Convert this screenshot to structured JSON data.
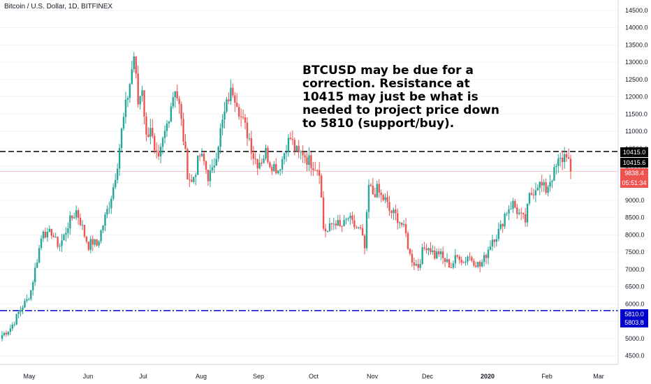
{
  "header": {
    "title": "Bitcoin / U.S. Dollar, 1D, BITFINEX"
  },
  "annotation": "BTCUSD may be due for a correction. Resistance at 10415 may just be what is needed to project price down to 5810 (support/buy).",
  "price_tags": {
    "resistance": "10415.0",
    "resistance_high": "10415.6",
    "last_price": "9838.4",
    "countdown": "05:51:34",
    "support": "5810.0",
    "support_low": "5803.8"
  },
  "colors": {
    "up": "#26a69a",
    "down": "#ef5350",
    "resistance": "#000000",
    "support": "#0000cc",
    "last_price": "#ef5350"
  },
  "chart_data": {
    "type": "candlestick",
    "symbol": "BTCUSD",
    "y_ticks": [
      4500,
      5000,
      5500,
      6000,
      6500,
      7000,
      7500,
      8000,
      8500,
      9000,
      9500,
      10000,
      10500,
      11000,
      11500,
      12000,
      12500,
      13000,
      13500,
      14000,
      14500
    ],
    "y_tick_labels": [
      "4500.0",
      "5000.0",
      "5500.0",
      "6000.0",
      "6500.0",
      "7000.0",
      "7500.0",
      "8000.0",
      "8500.0",
      "9000.0",
      "9500.0",
      "10000.0",
      "10500.0",
      "11000.0",
      "11500.0",
      "12000.0",
      "12500.0",
      "13000.0",
      "13500.0",
      "14000.0",
      "14500.0"
    ],
    "x_labels": [
      "May",
      "Jun",
      "Jul",
      "Aug",
      "Sep",
      "Oct",
      "Nov",
      "Dec",
      "2020",
      "Feb",
      "Mar"
    ],
    "ylim": [
      4250,
      14800
    ],
    "horizontal_lines": [
      {
        "value": 10415.0,
        "style": "dashed"
      },
      {
        "value": 5810.0,
        "style": "dash-dot"
      }
    ],
    "last_price": 9838.4,
    "price_path": [
      5100,
      5200,
      5300,
      5500,
      5750,
      5950,
      6100,
      6400,
      7000,
      7600,
      8200,
      7950,
      8100,
      7800,
      7700,
      7950,
      8300,
      8500,
      8700,
      8400,
      8000,
      7700,
      7800,
      7700,
      8100,
      8500,
      8900,
      9400,
      10100,
      11000,
      11700,
      12400,
      13200,
      11800,
      12300,
      10800,
      11200,
      10300,
      10100,
      10700,
      11200,
      11800,
      12300,
      11700,
      10800,
      9800,
      9500,
      9900,
      10300,
      10100,
      9700,
      9800,
      10400,
      11000,
      11500,
      12000,
      12200,
      11900,
      11400,
      11100,
      10800,
      10300,
      10100,
      10200,
      10400,
      10100,
      10000,
      9900,
      10200,
      10600,
      10800,
      10500,
      10300,
      10400,
      10200,
      10100,
      10000,
      9900,
      8200,
      8100,
      8300,
      8400,
      8200,
      8300,
      8500,
      8300,
      8200,
      8100,
      7600,
      9400,
      9200,
      9300,
      9100,
      9000,
      8700,
      8600,
      8500,
      8300,
      8000,
      7400,
      7200,
      7100,
      7500,
      7700,
      7600,
      7400,
      7500,
      7300,
      7200,
      7100,
      7300,
      7400,
      7200,
      7400,
      7300,
      7200,
      7100,
      7300,
      7600,
      7900,
      8000,
      8200,
      8600,
      8800,
      8900,
      8700,
      8500,
      8400,
      9100,
      9300,
      9500,
      9400,
      9300,
      9600,
      9800,
      10100,
      10200,
      10400,
      9838
    ]
  }
}
